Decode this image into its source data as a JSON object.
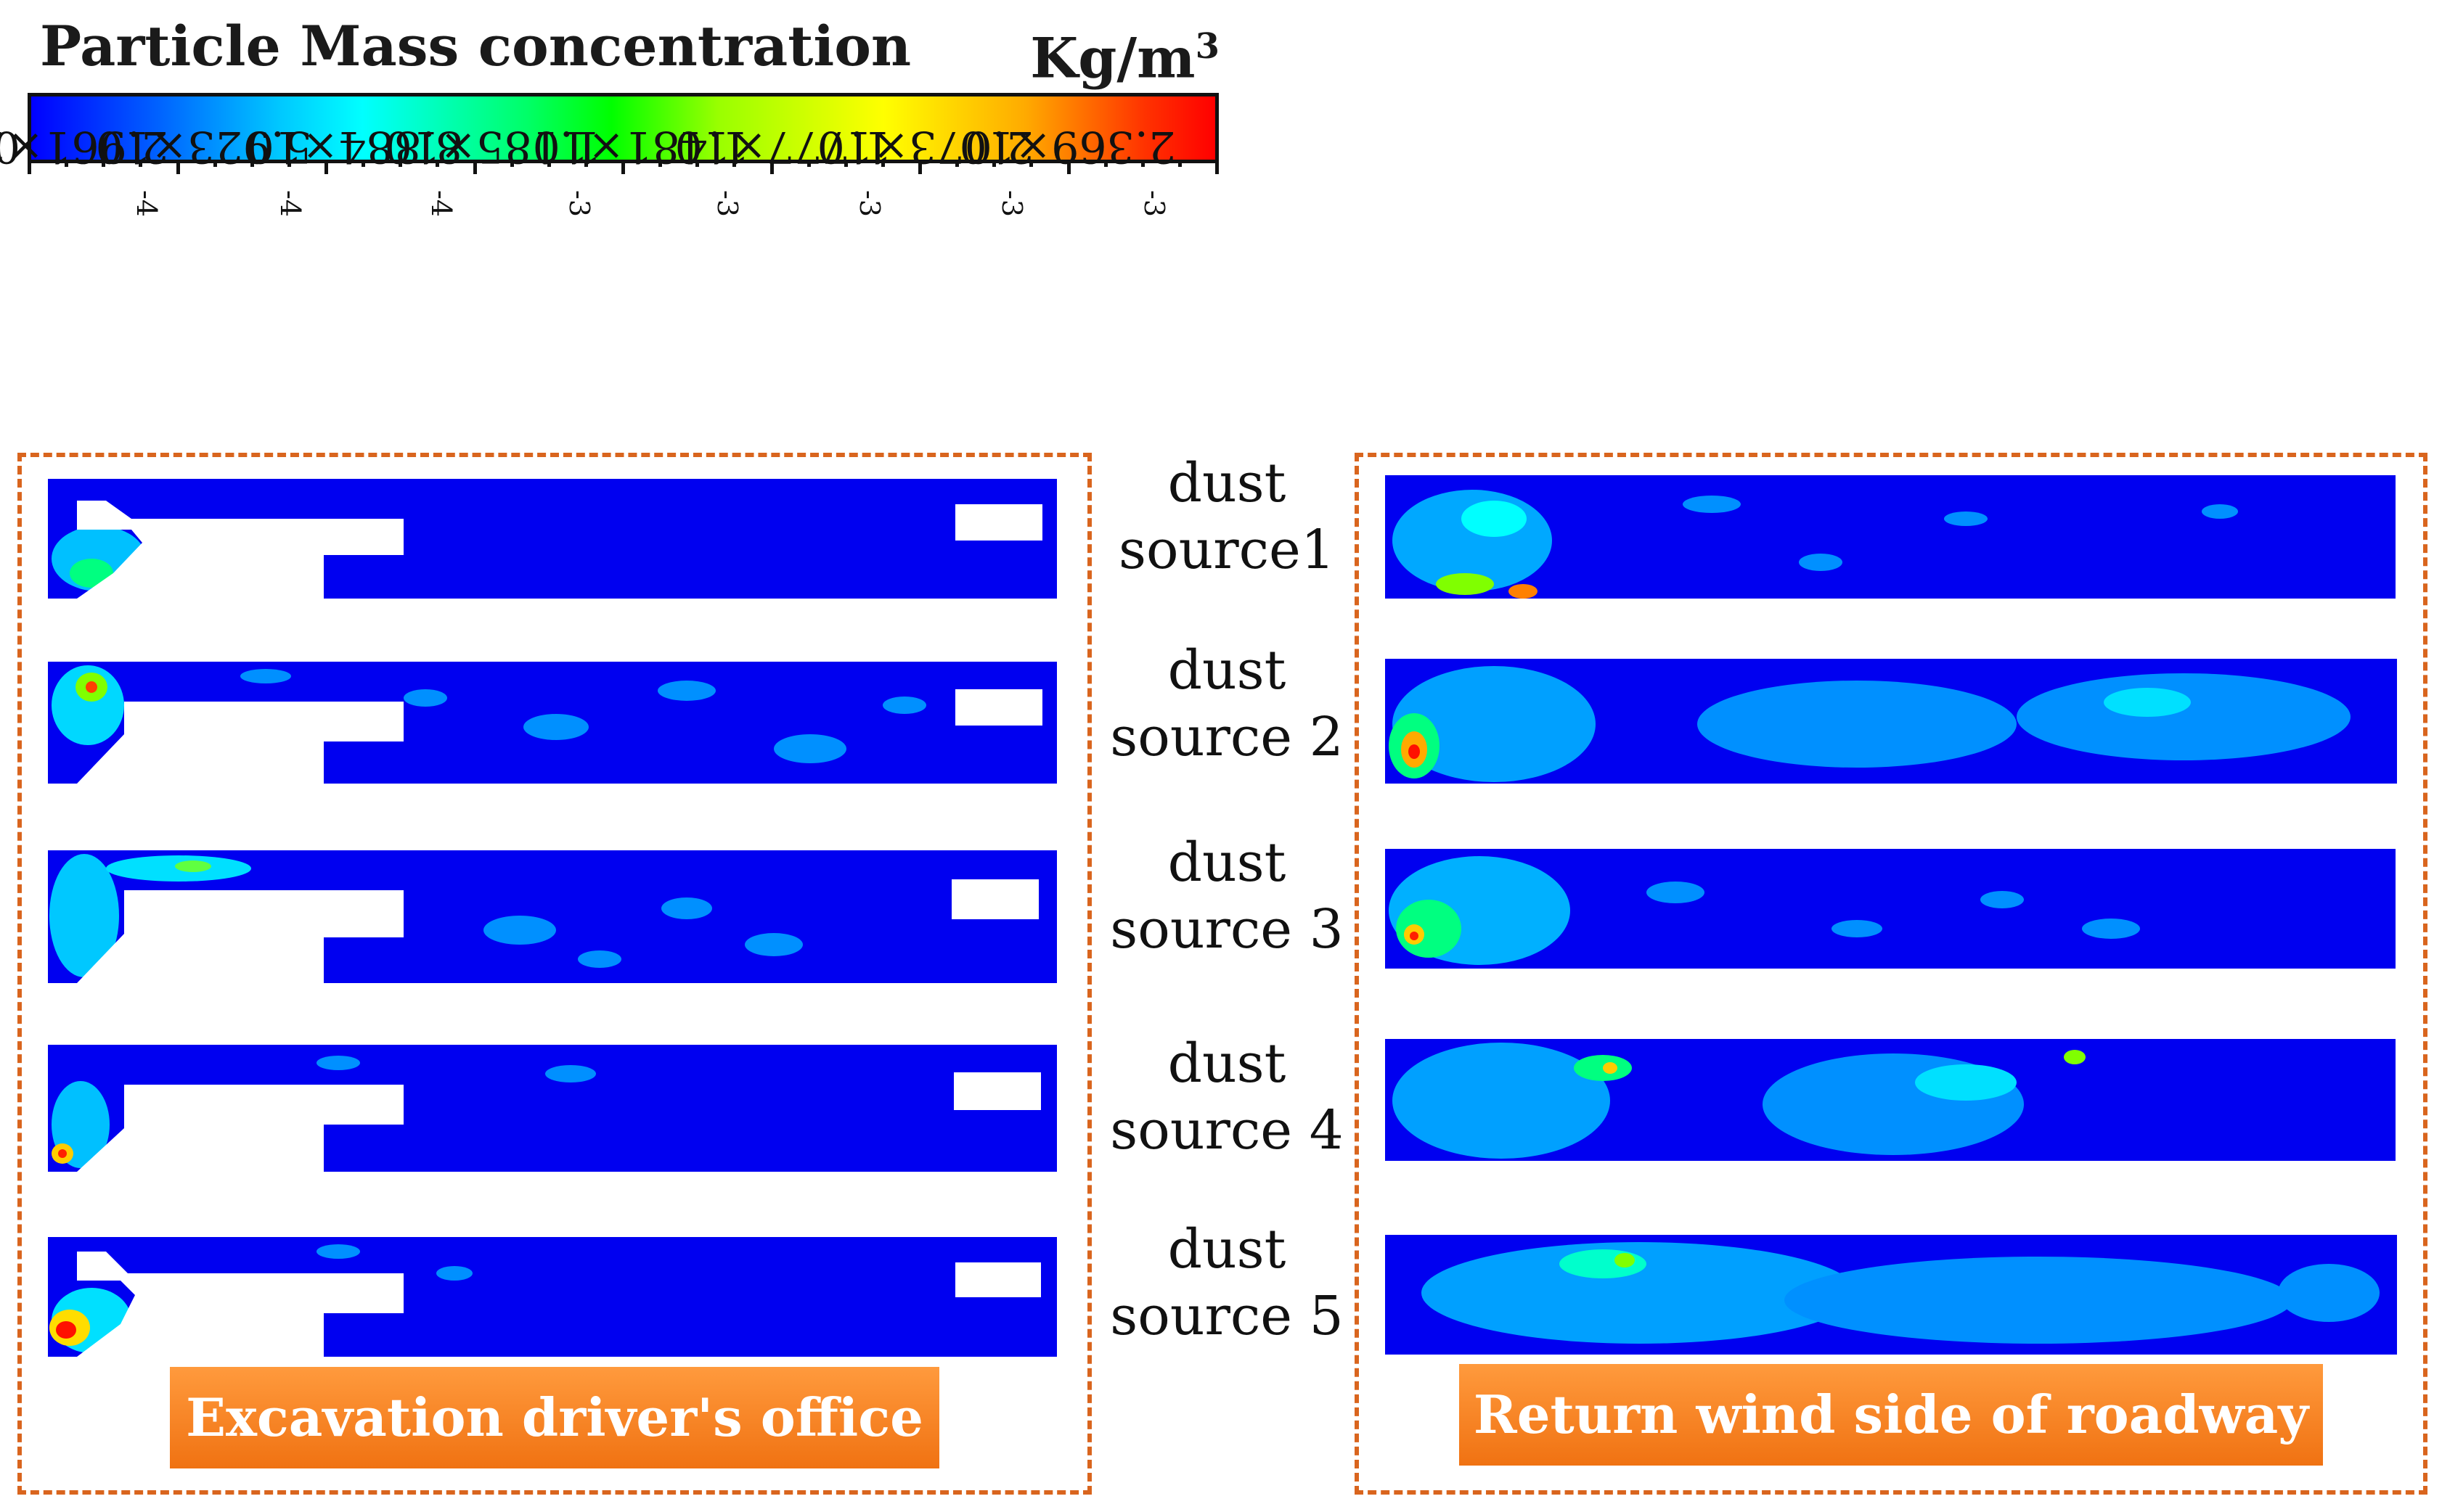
{
  "colorbar": {
    "title": "Particle Mass concentration",
    "unit": "Kg/m",
    "unit_sup": "3",
    "ticks": [
      {
        "base": "0",
        "exp": ""
      },
      {
        "base": "2.961×10",
        "exp": "-4"
      },
      {
        "base": "5.923×10",
        "exp": "-4"
      },
      {
        "base": "8.884×10",
        "exp": "-4"
      },
      {
        "base": "1.185×10",
        "exp": "-3"
      },
      {
        "base": "1.481×10",
        "exp": "-3"
      },
      {
        "base": "1.777×10",
        "exp": "-3"
      },
      {
        "base": "2.073×10",
        "exp": "-3"
      },
      {
        "base": "2.369×10",
        "exp": "-3"
      }
    ],
    "colors": [
      "#0000ff",
      "#00ffff",
      "#00ff00",
      "#ffff00",
      "#ff0000"
    ]
  },
  "sources": [
    {
      "line1": "dust",
      "line2": "source1"
    },
    {
      "line1": "dust",
      "line2": "source 2"
    },
    {
      "line1": "dust",
      "line2": "source 3"
    },
    {
      "line1": "dust",
      "line2": "source 4"
    },
    {
      "line1": "dust",
      "line2": "source 5"
    }
  ],
  "left_panel": {
    "label": "Excavation driver's office"
  },
  "right_panel": {
    "label": "Return wind side of roadway"
  }
}
